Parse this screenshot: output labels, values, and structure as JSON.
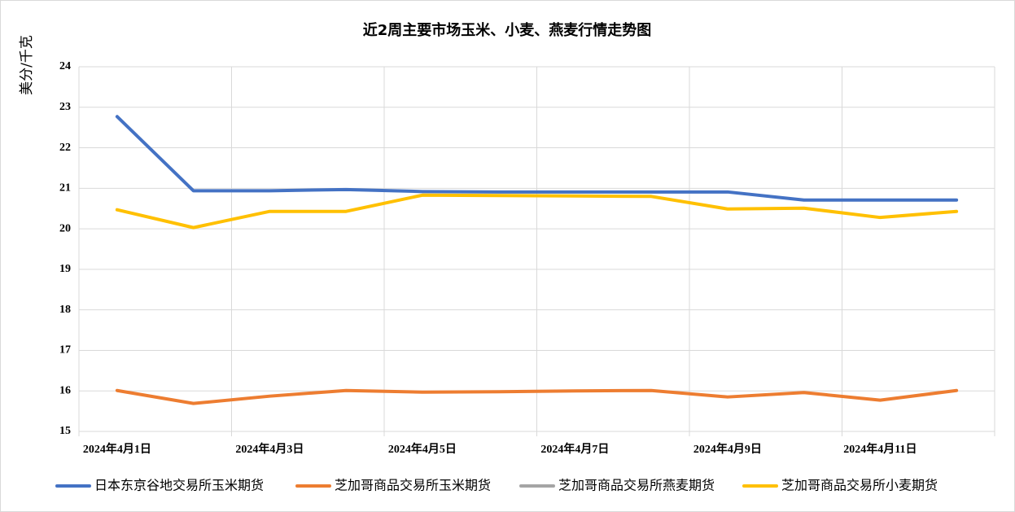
{
  "chart_data": {
    "type": "line",
    "title": "近2周主要市场玉米、小麦、燕麦行情走势图",
    "y_label": "美分/千克",
    "categories": [
      "2024年4月1日",
      null,
      "2024年4月3日",
      null,
      "2024年4月5日",
      null,
      "2024年4月7日",
      null,
      "2024年4月9日",
      null,
      "2024年4月11日",
      null
    ],
    "series": [
      {
        "name": "日本东京谷地交易所玉米期货",
        "color": "#4472c4",
        "values": [
          22.77,
          20.94,
          20.94,
          20.97,
          20.92,
          20.91,
          20.91,
          20.91,
          20.91,
          20.71,
          20.71,
          20.71
        ]
      },
      {
        "name": "芝加哥商品交易所玉米期货",
        "color": "#ed7d31",
        "values": [
          16.01,
          15.69,
          15.87,
          16.01,
          15.97,
          15.98,
          16.0,
          16.01,
          15.85,
          15.96,
          15.77,
          16.01
        ]
      },
      {
        "name": "芝加哥商品交易所燕麦期货",
        "color": "#a5a5a5",
        "values": [
          null,
          null,
          null,
          null,
          null,
          null,
          null,
          null,
          null,
          null,
          null,
          null
        ]
      },
      {
        "name": "芝加哥商品交易所小麦期货",
        "color": "#ffc000",
        "values": [
          20.47,
          20.03,
          20.43,
          20.43,
          20.83,
          20.82,
          20.81,
          20.8,
          20.49,
          20.51,
          20.28,
          20.43
        ]
      }
    ],
    "ylim": [
      15,
      24
    ],
    "yticks": [
      15,
      16,
      17,
      18,
      19,
      20,
      21,
      22,
      23,
      24
    ],
    "grid": true,
    "legend": "bottom"
  }
}
